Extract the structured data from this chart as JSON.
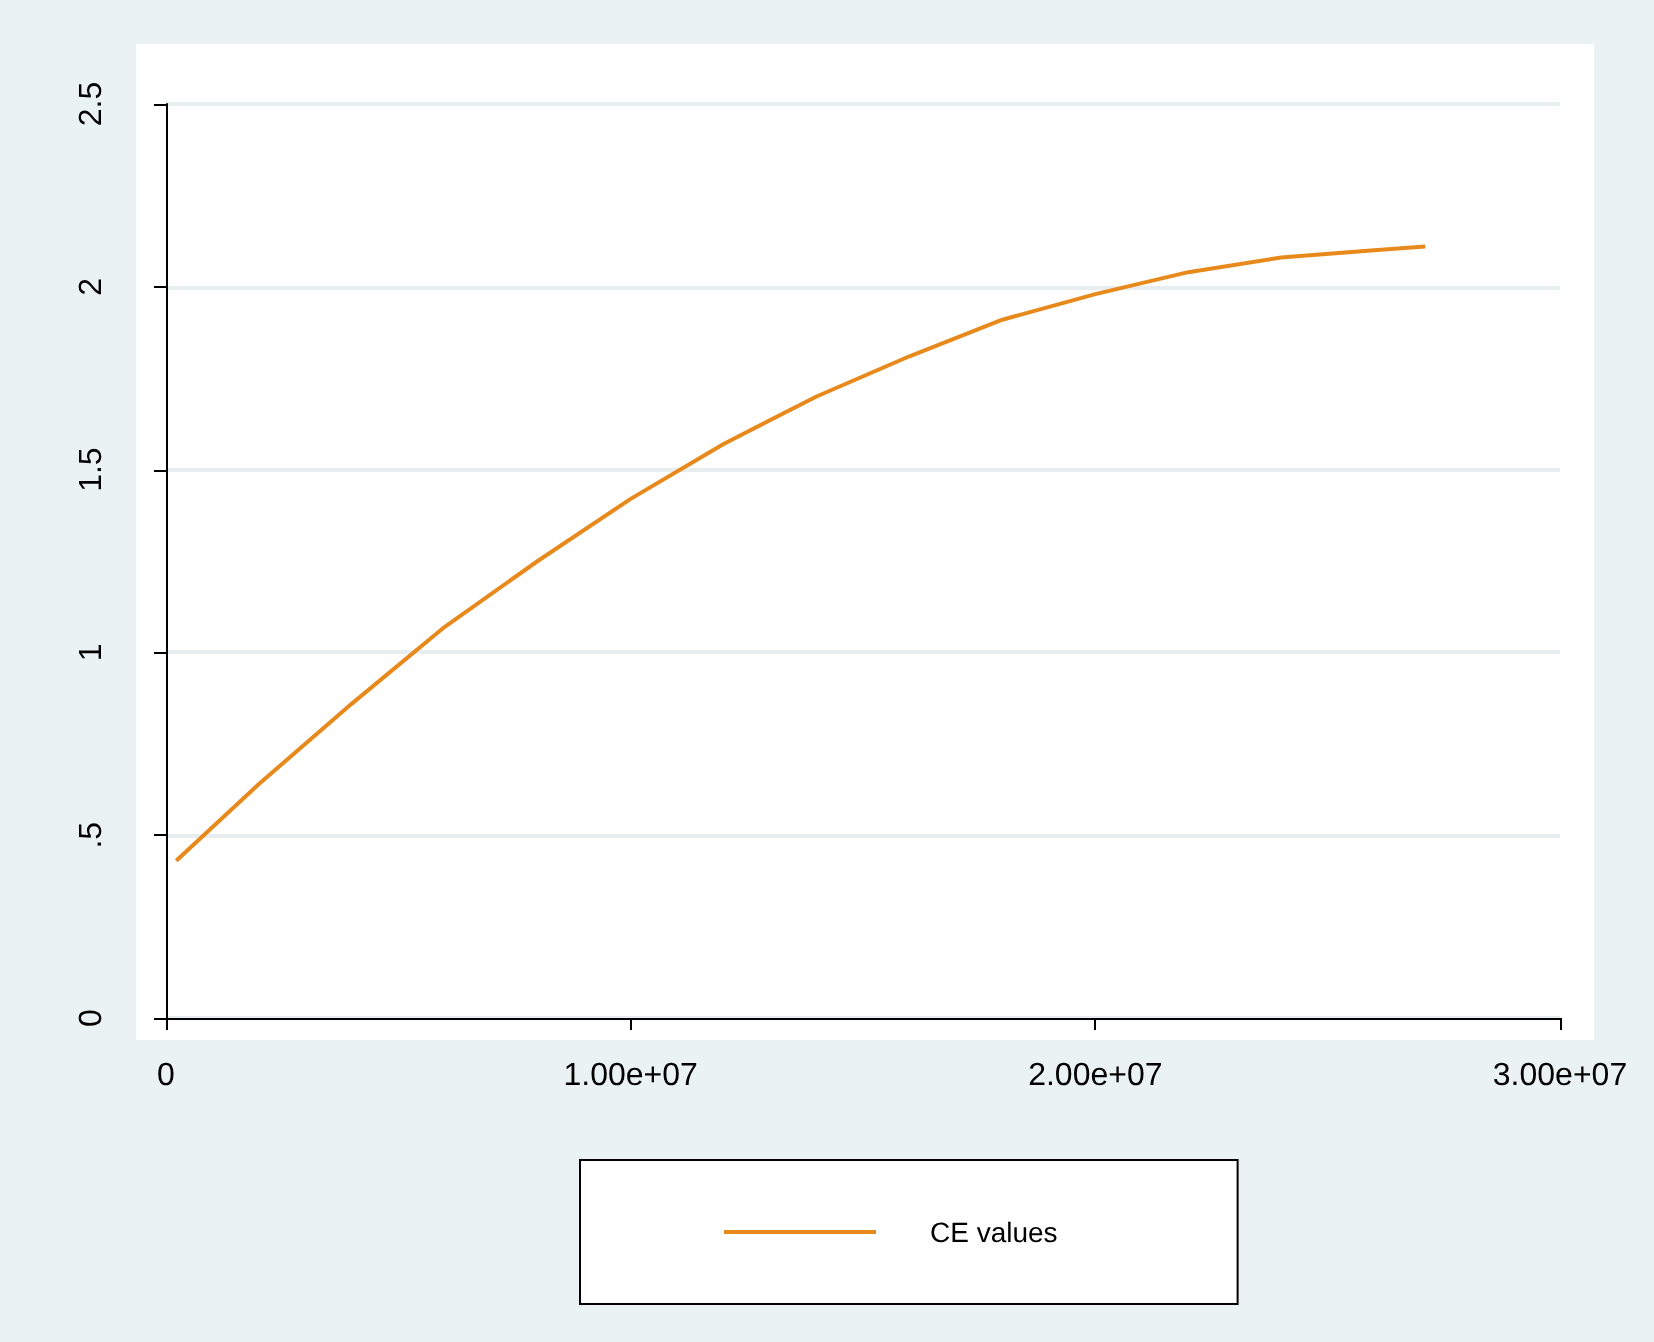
{
  "chart_data": {
    "type": "line",
    "x": [
      220000,
      2000000,
      4000000,
      6000000,
      8000000,
      10000000,
      12000000,
      14000000,
      16000000,
      18000000,
      20000000,
      22000000,
      24000000,
      26000000,
      27100000
    ],
    "series": [
      {
        "name": "CE values",
        "color": "#e8891c",
        "values": [
          0.43,
          0.64,
          0.86,
          1.07,
          1.25,
          1.42,
          1.57,
          1.7,
          1.81,
          1.91,
          1.98,
          2.04,
          2.08,
          2.1,
          2.11
        ]
      }
    ],
    "xlim": [
      0,
      30000000
    ],
    "xticks": [
      {
        "value": 0,
        "label": "0"
      },
      {
        "value": 10000000,
        "label": "1.00e+07"
      },
      {
        "value": 20000000,
        "label": "2.00e+07"
      },
      {
        "value": 30000000,
        "label": "3.00e+07"
      }
    ],
    "ylim": [
      0,
      2.5
    ],
    "yticks": [
      {
        "value": 0,
        "label": "0"
      },
      {
        "value": 0.5,
        "label": ".5"
      },
      {
        "value": 1,
        "label": "1"
      },
      {
        "value": 1.5,
        "label": "1.5"
      },
      {
        "value": 2,
        "label": "2"
      },
      {
        "value": 2.5,
        "label": "2.5"
      }
    ],
    "grid": "y",
    "legend": "bottom",
    "marker": "none",
    "line_style": "solid"
  }
}
